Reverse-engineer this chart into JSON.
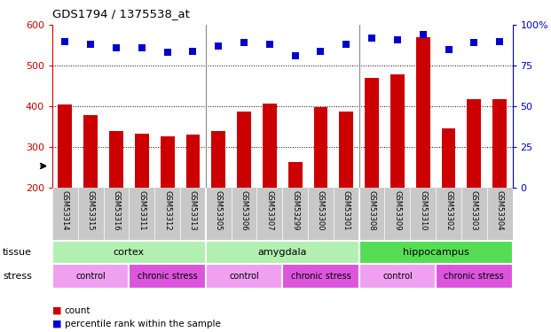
{
  "title": "GDS1794 / 1375538_at",
  "samples": [
    "GSM53314",
    "GSM53315",
    "GSM53316",
    "GSM53311",
    "GSM53312",
    "GSM53313",
    "GSM53305",
    "GSM53306",
    "GSM53307",
    "GSM53299",
    "GSM53300",
    "GSM53301",
    "GSM53308",
    "GSM53309",
    "GSM53310",
    "GSM53302",
    "GSM53303",
    "GSM53304"
  ],
  "counts": [
    405,
    378,
    340,
    332,
    325,
    330,
    338,
    388,
    406,
    262,
    397,
    386,
    470,
    478,
    570,
    345,
    418,
    418
  ],
  "percentiles": [
    90,
    88,
    86,
    86,
    83,
    84,
    87,
    89,
    88,
    81,
    84,
    88,
    92,
    91,
    94,
    85,
    89,
    90
  ],
  "bar_color": "#cc0000",
  "dot_color": "#0000cc",
  "ylim_left": [
    200,
    600
  ],
  "ylim_right": [
    0,
    100
  ],
  "yticks_left": [
    200,
    300,
    400,
    500,
    600
  ],
  "yticks_right": [
    0,
    25,
    50,
    75,
    100
  ],
  "ytick_right_labels": [
    "0",
    "25",
    "50",
    "75",
    "100%"
  ],
  "tissue_labels": [
    "cortex",
    "amygdala",
    "hippocampus"
  ],
  "tissue_ranges": [
    [
      0,
      6
    ],
    [
      6,
      12
    ],
    [
      12,
      18
    ]
  ],
  "tissue_colors": [
    "#b2f0b2",
    "#b2f0b2",
    "#55dd55"
  ],
  "stress_groups": [
    {
      "label": "control",
      "range": [
        0,
        3
      ]
    },
    {
      "label": "chronic stress",
      "range": [
        3,
        6
      ]
    },
    {
      "label": "control",
      "range": [
        6,
        9
      ]
    },
    {
      "label": "chronic stress",
      "range": [
        9,
        12
      ]
    },
    {
      "label": "control",
      "range": [
        12,
        15
      ]
    },
    {
      "label": "chronic stress",
      "range": [
        15,
        18
      ]
    }
  ],
  "stress_control_color": "#f0a0f0",
  "stress_chronic_color": "#dd55dd",
  "bar_width": 0.55,
  "dot_size": 40,
  "background_color": "#ffffff",
  "left_color": "#cc0000",
  "right_color": "#0000cc",
  "xlabel_bg": "#c8c8c8",
  "group_dividers": [
    5.5,
    11.5
  ],
  "grid_vals": [
    300,
    400,
    500
  ]
}
